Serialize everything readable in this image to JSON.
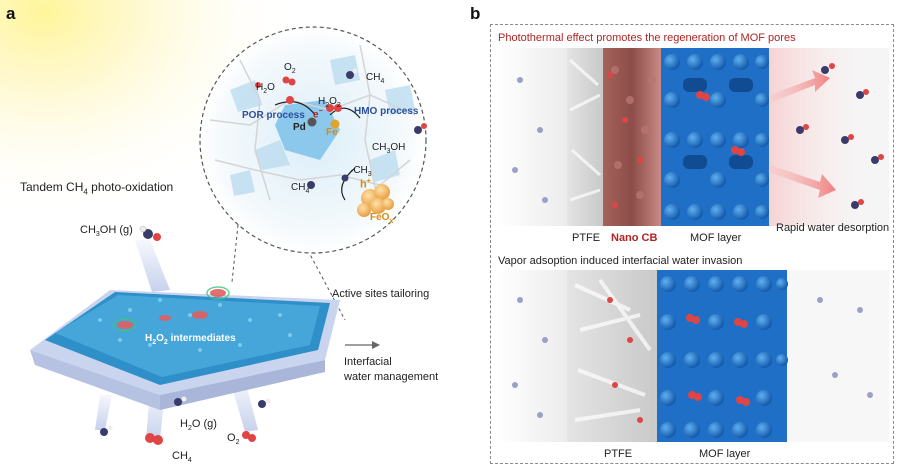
{
  "panel_a": {
    "letter": "a",
    "tandem_label": "Tandem CH",
    "tandem_sub": "4",
    "tandem_suffix": " photo-oxidation",
    "ch3oh_gas": "CH",
    "ch3oh_gas_sub": "3",
    "ch3oh_gas_suffix": "OH (g)",
    "h2o2_label": "H",
    "h2o2_sub1": "2",
    "h2o2_mid": "O",
    "h2o2_sub2": "2",
    "h2o2_suffix": " intermediates",
    "active_sites": "Active sites tailoring",
    "interfacial_1": "Interfacial",
    "interfacial_2": "water management",
    "h2o_gas": "H",
    "h2o_gas_sub": "2",
    "h2o_gas_suffix": "O (g)",
    "o2_bottom": "O",
    "o2_bottom_sub": "2",
    "ch4_bottom": "CH",
    "ch4_bottom_sub": "4",
    "zoom": {
      "o2": "O",
      "o2_sub": "2",
      "h2o": "H",
      "h2o_sub": "2",
      "h2o_suffix": "O",
      "ch4": "CH",
      "ch4_sub": "4",
      "por": "POR process",
      "e_minus": "e",
      "e_sup": "−",
      "h2o2": "H",
      "h2o2_sub1": "2",
      "h2o2_mid": "O",
      "h2o2_sub2": "2",
      "hmo": "HMO process",
      "pd": "Pd",
      "fe": "Fe",
      "ch3oh": "CH",
      "ch3oh_sub": "3",
      "ch3oh_suffix": "OH",
      "ch3": "·CH",
      "ch3_sub": "3",
      "ch4_left": "CH",
      "ch4_left_sub": "4",
      "h_plus": "h",
      "h_plus_sup": "+",
      "feox": "FeO",
      "feox_sub": "x"
    }
  },
  "panel_b": {
    "letter": "b",
    "top_title": "Photothermal effect promotes the regeneration of MOF pores",
    "top_ptfe": "PTFE",
    "top_nanocb": "Nano CB",
    "top_mof": "MOF layer",
    "top_rapid": "Rapid water desorption",
    "bottom_title": "Vapor adsoption induced interfacial water invasion",
    "bottom_ptfe": "PTFE",
    "bottom_mof": "MOF layer"
  },
  "colors": {
    "title_red": "#b02424",
    "process_blue": "#2b4f9e",
    "feox_orange": "#d88a12",
    "mof_blue": "#1f6fc7",
    "nanocb_brown": "#9b5a55",
    "membrane_blue": "#4aa0d8"
  }
}
